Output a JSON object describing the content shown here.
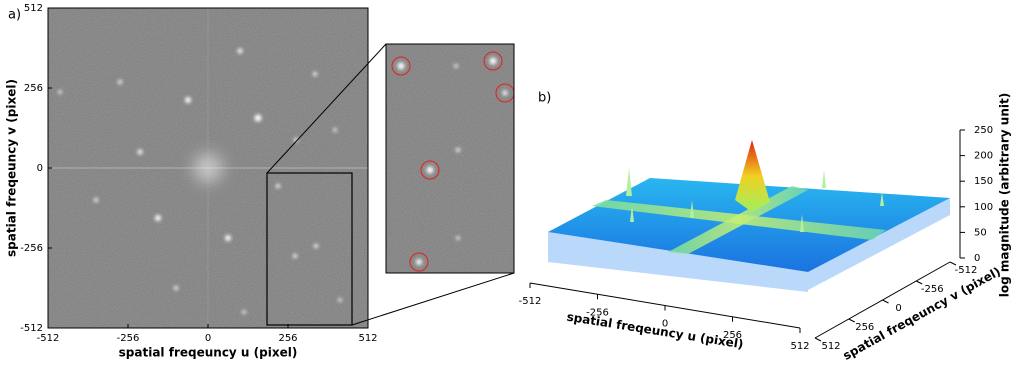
{
  "chart_data": [
    {
      "type": "image",
      "panel_label": "a)",
      "x_label": "spatial freqeuncy u (pixel)",
      "y_label": "spatial freqeuncy v (pixel)",
      "xlim": [
        -512,
        512
      ],
      "ylim": [
        -512,
        512
      ],
      "xticks": [
        -512,
        -256,
        0,
        256,
        512
      ],
      "yticks": [
        -512,
        -256,
        0,
        256,
        512
      ]
    },
    {
      "type": "surface3d",
      "panel_label": "b)",
      "x_label": "spatial freqeuncy u (pixel)",
      "y_label": "spatial freqeuncy v (pixel)",
      "z_label": "log magnitude (arbitrary unit)",
      "xlim": [
        -512,
        512
      ],
      "ylim": [
        -512,
        512
      ],
      "zlim": [
        0,
        250
      ],
      "xticks": [
        -512,
        -256,
        0,
        256,
        512
      ],
      "yticks": [
        -512,
        -256,
        0,
        256,
        512
      ],
      "zticks": [
        0,
        50,
        100,
        150,
        200,
        250
      ]
    }
  ]
}
